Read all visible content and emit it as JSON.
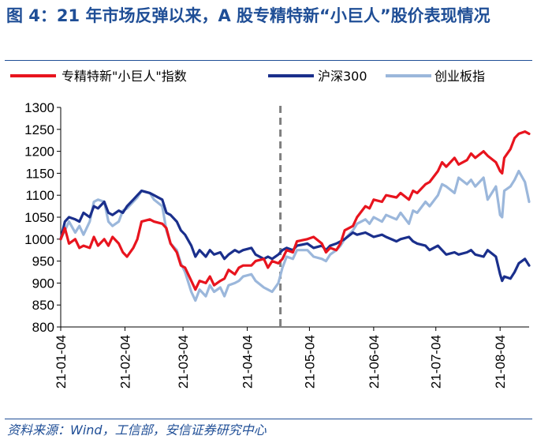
{
  "figure": {
    "title": "图 4：21 年市场反弹以来，A 股专精特新“小巨人”股价表现情况",
    "source": "资料来源：Wind，工信部，安信证券研究中心"
  },
  "chart_data": {
    "type": "line",
    "title": "",
    "xlabel": "",
    "ylabel": "",
    "ylim": [
      800,
      1300
    ],
    "yticks": [
      "800",
      "850",
      "900",
      "950",
      "1000",
      "1050",
      "1100",
      "1150",
      "1200",
      "1250",
      "1300"
    ],
    "xlim": [
      "2021-01-04",
      "2021-08-18"
    ],
    "xticks": [
      "21-01-04",
      "21-02-04",
      "21-03-04",
      "21-04-04",
      "21-05-04",
      "21-06-04",
      "21-07-04",
      "21-08-04"
    ],
    "grid": false,
    "legend": "top",
    "vline": {
      "x": "2021-04-20",
      "style": "dashed"
    },
    "series": [
      {
        "name": "专精特新\"小巨人\"指数",
        "color": "#e8141e",
        "points": [
          [
            "2021-01-04",
            1000
          ],
          [
            "2021-01-06",
            1025
          ],
          [
            "2021-01-08",
            990
          ],
          [
            "2021-01-11",
            1000
          ],
          [
            "2021-01-13",
            980
          ],
          [
            "2021-01-15",
            985
          ],
          [
            "2021-01-18",
            980
          ],
          [
            "2021-01-20",
            1005
          ],
          [
            "2021-01-22",
            985
          ],
          [
            "2021-01-25",
            1000
          ],
          [
            "2021-01-27",
            985
          ],
          [
            "2021-01-29",
            1005
          ],
          [
            "2021-02-01",
            990
          ],
          [
            "2021-02-03",
            970
          ],
          [
            "2021-02-05",
            960
          ],
          [
            "2021-02-08",
            980
          ],
          [
            "2021-02-10",
            1000
          ],
          [
            "2021-02-12",
            1040
          ],
          [
            "2021-02-16",
            1045
          ],
          [
            "2021-02-18",
            1040
          ],
          [
            "2021-02-22",
            1035
          ],
          [
            "2021-02-24",
            1025
          ],
          [
            "2021-02-26",
            990
          ],
          [
            "2021-03-01",
            970
          ],
          [
            "2021-03-03",
            940
          ],
          [
            "2021-03-05",
            935
          ],
          [
            "2021-03-08",
            905
          ],
          [
            "2021-03-10",
            885
          ],
          [
            "2021-03-12",
            905
          ],
          [
            "2021-03-15",
            900
          ],
          [
            "2021-03-17",
            915
          ],
          [
            "2021-03-19",
            895
          ],
          [
            "2021-03-22",
            905
          ],
          [
            "2021-03-24",
            910
          ],
          [
            "2021-03-26",
            930
          ],
          [
            "2021-03-29",
            920
          ],
          [
            "2021-03-31",
            935
          ],
          [
            "2021-04-02",
            940
          ],
          [
            "2021-04-06",
            940
          ],
          [
            "2021-04-08",
            950
          ],
          [
            "2021-04-12",
            955
          ],
          [
            "2021-04-14",
            935
          ],
          [
            "2021-04-16",
            950
          ],
          [
            "2021-04-19",
            945
          ],
          [
            "2021-04-21",
            955
          ],
          [
            "2021-04-23",
            975
          ],
          [
            "2021-04-26",
            970
          ],
          [
            "2021-04-28",
            995
          ],
          [
            "2021-05-03",
            1000
          ],
          [
            "2021-05-06",
            1005
          ],
          [
            "2021-05-10",
            990
          ],
          [
            "2021-05-12",
            970
          ],
          [
            "2021-05-14",
            980
          ],
          [
            "2021-05-17",
            975
          ],
          [
            "2021-05-19",
            990
          ],
          [
            "2021-05-21",
            1020
          ],
          [
            "2021-05-25",
            1030
          ],
          [
            "2021-05-27",
            1050
          ],
          [
            "2021-05-31",
            1075
          ],
          [
            "2021-06-02",
            1070
          ],
          [
            "2021-06-04",
            1090
          ],
          [
            "2021-06-08",
            1085
          ],
          [
            "2021-06-10",
            1100
          ],
          [
            "2021-06-15",
            1095
          ],
          [
            "2021-06-17",
            1105
          ],
          [
            "2021-06-21",
            1090
          ],
          [
            "2021-06-23",
            1110
          ],
          [
            "2021-06-25",
            1105
          ],
          [
            "2021-06-29",
            1125
          ],
          [
            "2021-07-01",
            1130
          ],
          [
            "2021-07-05",
            1155
          ],
          [
            "2021-07-07",
            1175
          ],
          [
            "2021-07-09",
            1165
          ],
          [
            "2021-07-13",
            1185
          ],
          [
            "2021-07-15",
            1170
          ],
          [
            "2021-07-19",
            1180
          ],
          [
            "2021-07-21",
            1195
          ],
          [
            "2021-07-23",
            1185
          ],
          [
            "2021-07-27",
            1200
          ],
          [
            "2021-07-29",
            1190
          ],
          [
            "2021-08-02",
            1175
          ],
          [
            "2021-08-04",
            1155
          ],
          [
            "2021-08-05",
            1150
          ],
          [
            "2021-08-06",
            1185
          ],
          [
            "2021-08-09",
            1205
          ],
          [
            "2021-08-11",
            1230
          ],
          [
            "2021-08-13",
            1240
          ],
          [
            "2021-08-16",
            1245
          ],
          [
            "2021-08-18",
            1240
          ]
        ]
      },
      {
        "name": "沪深300",
        "color": "#1a2f8c",
        "points": [
          [
            "2021-01-04",
            1000
          ],
          [
            "2021-01-06",
            1040
          ],
          [
            "2021-01-08",
            1050
          ],
          [
            "2021-01-11",
            1045
          ],
          [
            "2021-01-13",
            1040
          ],
          [
            "2021-01-15",
            1060
          ],
          [
            "2021-01-18",
            1050
          ],
          [
            "2021-01-20",
            1075
          ],
          [
            "2021-01-22",
            1070
          ],
          [
            "2021-01-25",
            1085
          ],
          [
            "2021-01-27",
            1060
          ],
          [
            "2021-01-29",
            1055
          ],
          [
            "2021-02-01",
            1065
          ],
          [
            "2021-02-03",
            1060
          ],
          [
            "2021-02-05",
            1075
          ],
          [
            "2021-02-08",
            1090
          ],
          [
            "2021-02-10",
            1100
          ],
          [
            "2021-02-12",
            1110
          ],
          [
            "2021-02-16",
            1105
          ],
          [
            "2021-02-18",
            1100
          ],
          [
            "2021-02-22",
            1090
          ],
          [
            "2021-02-24",
            1060
          ],
          [
            "2021-02-26",
            1055
          ],
          [
            "2021-03-01",
            1040
          ],
          [
            "2021-03-03",
            1020
          ],
          [
            "2021-03-05",
            1010
          ],
          [
            "2021-03-08",
            985
          ],
          [
            "2021-03-10",
            960
          ],
          [
            "2021-03-12",
            975
          ],
          [
            "2021-03-15",
            960
          ],
          [
            "2021-03-17",
            975
          ],
          [
            "2021-03-19",
            965
          ],
          [
            "2021-03-22",
            970
          ],
          [
            "2021-03-24",
            955
          ],
          [
            "2021-03-26",
            965
          ],
          [
            "2021-03-29",
            975
          ],
          [
            "2021-03-31",
            970
          ],
          [
            "2021-04-02",
            975
          ],
          [
            "2021-04-06",
            980
          ],
          [
            "2021-04-08",
            965
          ],
          [
            "2021-04-12",
            955
          ],
          [
            "2021-04-14",
            960
          ],
          [
            "2021-04-16",
            955
          ],
          [
            "2021-04-19",
            965
          ],
          [
            "2021-04-21",
            975
          ],
          [
            "2021-04-23",
            980
          ],
          [
            "2021-04-26",
            975
          ],
          [
            "2021-04-28",
            985
          ],
          [
            "2021-05-03",
            990
          ],
          [
            "2021-05-06",
            980
          ],
          [
            "2021-05-10",
            985
          ],
          [
            "2021-05-12",
            975
          ],
          [
            "2021-05-14",
            985
          ],
          [
            "2021-05-17",
            990
          ],
          [
            "2021-05-19",
            995
          ],
          [
            "2021-05-21",
            1000
          ],
          [
            "2021-05-25",
            1015
          ],
          [
            "2021-05-27",
            1010
          ],
          [
            "2021-05-31",
            1015
          ],
          [
            "2021-06-02",
            1010
          ],
          [
            "2021-06-04",
            1005
          ],
          [
            "2021-06-08",
            1010
          ],
          [
            "2021-06-10",
            1005
          ],
          [
            "2021-06-15",
            995
          ],
          [
            "2021-06-17",
            1000
          ],
          [
            "2021-06-21",
            1005
          ],
          [
            "2021-06-23",
            995
          ],
          [
            "2021-06-25",
            990
          ],
          [
            "2021-06-29",
            985
          ],
          [
            "2021-07-01",
            975
          ],
          [
            "2021-07-05",
            985
          ],
          [
            "2021-07-07",
            975
          ],
          [
            "2021-07-09",
            965
          ],
          [
            "2021-07-13",
            970
          ],
          [
            "2021-07-15",
            965
          ],
          [
            "2021-07-19",
            970
          ],
          [
            "2021-07-21",
            975
          ],
          [
            "2021-07-23",
            965
          ],
          [
            "2021-07-27",
            960
          ],
          [
            "2021-07-29",
            975
          ],
          [
            "2021-08-02",
            960
          ],
          [
            "2021-08-04",
            920
          ],
          [
            "2021-08-05",
            905
          ],
          [
            "2021-08-06",
            915
          ],
          [
            "2021-08-09",
            910
          ],
          [
            "2021-08-11",
            925
          ],
          [
            "2021-08-13",
            945
          ],
          [
            "2021-08-16",
            955
          ],
          [
            "2021-08-18",
            940
          ]
        ]
      },
      {
        "name": "创业板指",
        "color": "#9bb7db",
        "points": [
          [
            "2021-01-04",
            1000
          ],
          [
            "2021-01-06",
            1020
          ],
          [
            "2021-01-08",
            1040
          ],
          [
            "2021-01-11",
            1015
          ],
          [
            "2021-01-13",
            1030
          ],
          [
            "2021-01-15",
            1010
          ],
          [
            "2021-01-18",
            1040
          ],
          [
            "2021-01-20",
            1085
          ],
          [
            "2021-01-22",
            1090
          ],
          [
            "2021-01-25",
            1085
          ],
          [
            "2021-01-27",
            1040
          ],
          [
            "2021-01-29",
            1030
          ],
          [
            "2021-02-01",
            1040
          ],
          [
            "2021-02-03",
            1065
          ],
          [
            "2021-02-05",
            1070
          ],
          [
            "2021-02-08",
            1085
          ],
          [
            "2021-02-10",
            1095
          ],
          [
            "2021-02-12",
            1110
          ],
          [
            "2021-02-16",
            1105
          ],
          [
            "2021-02-18",
            1090
          ],
          [
            "2021-02-22",
            1075
          ],
          [
            "2021-02-24",
            1020
          ],
          [
            "2021-02-26",
            990
          ],
          [
            "2021-03-01",
            975
          ],
          [
            "2021-03-03",
            945
          ],
          [
            "2021-03-05",
            925
          ],
          [
            "2021-03-08",
            880
          ],
          [
            "2021-03-10",
            860
          ],
          [
            "2021-03-12",
            885
          ],
          [
            "2021-03-15",
            870
          ],
          [
            "2021-03-17",
            895
          ],
          [
            "2021-03-19",
            880
          ],
          [
            "2021-03-22",
            890
          ],
          [
            "2021-03-24",
            870
          ],
          [
            "2021-03-26",
            895
          ],
          [
            "2021-03-29",
            900
          ],
          [
            "2021-03-31",
            905
          ],
          [
            "2021-04-02",
            915
          ],
          [
            "2021-04-06",
            920
          ],
          [
            "2021-04-08",
            905
          ],
          [
            "2021-04-12",
            890
          ],
          [
            "2021-04-14",
            885
          ],
          [
            "2021-04-16",
            880
          ],
          [
            "2021-04-19",
            900
          ],
          [
            "2021-04-21",
            935
          ],
          [
            "2021-04-23",
            960
          ],
          [
            "2021-04-26",
            955
          ],
          [
            "2021-04-28",
            975
          ],
          [
            "2021-05-03",
            975
          ],
          [
            "2021-05-06",
            960
          ],
          [
            "2021-05-10",
            955
          ],
          [
            "2021-05-12",
            950
          ],
          [
            "2021-05-14",
            965
          ],
          [
            "2021-05-17",
            975
          ],
          [
            "2021-05-19",
            985
          ],
          [
            "2021-05-21",
            1000
          ],
          [
            "2021-05-25",
            1020
          ],
          [
            "2021-05-27",
            1035
          ],
          [
            "2021-05-31",
            1045
          ],
          [
            "2021-06-02",
            1035
          ],
          [
            "2021-06-04",
            1050
          ],
          [
            "2021-06-08",
            1040
          ],
          [
            "2021-06-10",
            1055
          ],
          [
            "2021-06-15",
            1045
          ],
          [
            "2021-06-17",
            1060
          ],
          [
            "2021-06-21",
            1035
          ],
          [
            "2021-06-23",
            1065
          ],
          [
            "2021-06-25",
            1060
          ],
          [
            "2021-06-29",
            1085
          ],
          [
            "2021-07-01",
            1075
          ],
          [
            "2021-07-05",
            1100
          ],
          [
            "2021-07-07",
            1125
          ],
          [
            "2021-07-09",
            1120
          ],
          [
            "2021-07-13",
            1105
          ],
          [
            "2021-07-15",
            1140
          ],
          [
            "2021-07-19",
            1125
          ],
          [
            "2021-07-21",
            1135
          ],
          [
            "2021-07-23",
            1120
          ],
          [
            "2021-07-27",
            1140
          ],
          [
            "2021-07-29",
            1090
          ],
          [
            "2021-08-02",
            1120
          ],
          [
            "2021-08-04",
            1055
          ],
          [
            "2021-08-05",
            1050
          ],
          [
            "2021-08-06",
            1110
          ],
          [
            "2021-08-09",
            1120
          ],
          [
            "2021-08-11",
            1135
          ],
          [
            "2021-08-13",
            1155
          ],
          [
            "2021-08-16",
            1130
          ],
          [
            "2021-08-18",
            1085
          ]
        ]
      }
    ]
  }
}
